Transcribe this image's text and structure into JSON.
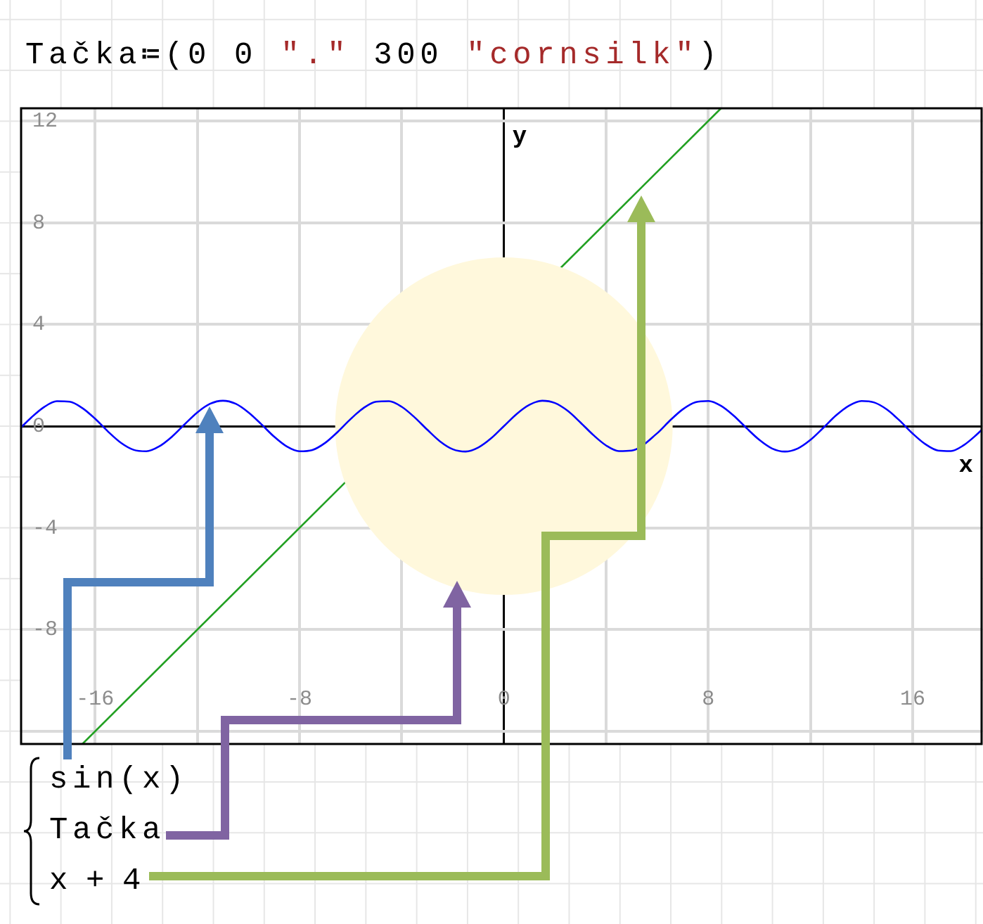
{
  "chart_data": {
    "type": "line",
    "title": "Tačka≔(0 0 \".\" 300 \"cornsilk\")",
    "xlabel": "x",
    "ylabel": "y",
    "series": [
      {
        "type": "line",
        "color": "#0000ff",
        "x": [
          -18.9,
          -18.5,
          -18,
          -17.5,
          -17,
          -16.5,
          -16,
          -15.5,
          -15,
          -14.5,
          -14,
          -13.5,
          -13,
          -12.5,
          -12,
          -11.5,
          -11,
          -10.5,
          -10,
          -9.5,
          -9,
          -8.5,
          -8,
          -7.5,
          -7,
          -6.5,
          -6,
          -5.5,
          -5,
          -4.5,
          -4,
          -3.5,
          -3,
          -2.5,
          -2,
          -1.5,
          -1,
          -0.5,
          0,
          0.5,
          1,
          1.5,
          2,
          2.5,
          3,
          3.5,
          4,
          4.5,
          5,
          6,
          6.5,
          7,
          7.5,
          8,
          8.5,
          9,
          9.5,
          10,
          10.5,
          11,
          11.5,
          12,
          12.5,
          13,
          13.5,
          14,
          14.5,
          15,
          15.5,
          16,
          16.5,
          17,
          17.5,
          18,
          18.5,
          18.7
        ],
        "values": [
          -0.05,
          0.34,
          0.75,
          0.98,
          0.96,
          0.71,
          0.29,
          -0.21,
          -0.65,
          -0.93,
          -0.99,
          -0.8,
          -0.42,
          0.07,
          0.54,
          0.88,
          1,
          0.88,
          0.54,
          0.08,
          -0.41,
          -0.8,
          -0.99,
          -0.94,
          -0.66,
          -0.22,
          0.28,
          0.71,
          0.96,
          0.98,
          0.76,
          0.35,
          -0.14,
          -0.6,
          -0.91,
          -1,
          -0.84,
          -0.48,
          0,
          0.48,
          0.84,
          1,
          0.91,
          0.6,
          0.14,
          -0.35,
          -0.76,
          -0.98,
          -0.96,
          -0.28,
          0.22,
          0.66,
          0.94,
          0.99,
          0.8,
          0.41,
          -0.08,
          -0.54,
          -0.88,
          -1,
          -0.88,
          -0.54,
          -0.07,
          0.42,
          0.8,
          0.99,
          0.93,
          0.65,
          0.21,
          -0.29,
          -0.71,
          -0.96,
          -0.98,
          -0.75,
          -0.34,
          -0.15
        ]
      },
      {
        "type": "scatter",
        "marker": "circle",
        "color": "#fff8dc",
        "x": [
          0
        ],
        "values": [
          0
        ]
      },
      {
        "type": "line",
        "color": "#22a022",
        "x": [
          -16.5,
          8.5
        ],
        "values": [
          -12.5,
          12.5
        ]
      }
    ],
    "xlim": [
      -18.9,
      18.7
    ],
    "ylim": [
      -12.5,
      12.5
    ],
    "xticks": [
      -16,
      {
        "value": -12,
        "label": null
      },
      -8,
      {
        "value": -4,
        "label": null
      },
      0,
      {
        "value": 4,
        "label": null
      },
      8,
      {
        "value": 12,
        "label": null
      },
      16
    ],
    "yticks": [
      {
        "value": -12,
        "label": null
      },
      -8,
      -4,
      0,
      4,
      8,
      12
    ],
    "grid": true,
    "annotations": [
      "sin(x)",
      "Tačka",
      "x + 4"
    ]
  }
}
